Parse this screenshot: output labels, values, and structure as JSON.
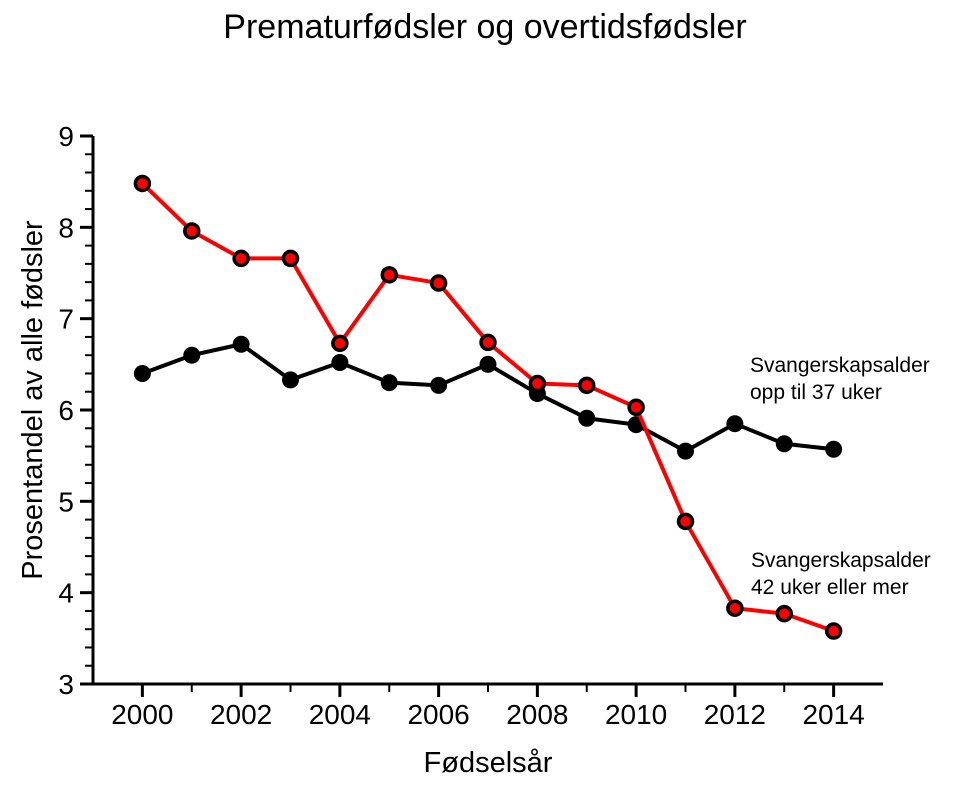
{
  "chart_data": {
    "type": "line",
    "title": "Prematurfødsler og overtidsfødsler",
    "xlabel": "Fødselsår",
    "ylabel": "Prosentandel av alle fødsler",
    "xlim": [
      1999,
      2015
    ],
    "ylim": [
      3,
      9
    ],
    "grid": false,
    "legend_position": "none (direct line labels)",
    "x": [
      2000,
      2001,
      2002,
      2003,
      2004,
      2005,
      2006,
      2007,
      2008,
      2009,
      2010,
      2011,
      2012,
      2013,
      2014
    ],
    "x_major_ticks": [
      2000,
      2002,
      2004,
      2006,
      2008,
      2010,
      2012,
      2014
    ],
    "x_minor_ticks": [
      2001,
      2003,
      2005,
      2007,
      2009,
      2011,
      2013
    ],
    "y_major_ticks": [
      3,
      4,
      5,
      6,
      7,
      8,
      9
    ],
    "y_minor_step": 0.2,
    "series": [
      {
        "name": "Svangerskapsalder opp til 37 uker",
        "color": "#000000",
        "marker": "filled-circle",
        "values": [
          6.4,
          6.6,
          6.72,
          6.33,
          6.52,
          6.3,
          6.27,
          6.5,
          6.18,
          5.91,
          5.84,
          5.55,
          5.85,
          5.63,
          5.57
        ]
      },
      {
        "name": "Svangerskapsalder 42 uker eller mer",
        "color": "#ff0000",
        "marker": "red-circle-black-ring",
        "marker_ring": "#000000",
        "values": [
          8.48,
          7.96,
          7.66,
          7.66,
          6.73,
          7.48,
          7.39,
          6.74,
          6.29,
          6.27,
          6.03,
          4.78,
          3.83,
          3.77,
          3.58
        ]
      }
    ],
    "annotations": [
      {
        "line1": "Svangerskapsalder",
        "line2": "opp til 37 uker"
      },
      {
        "line1": "Svangerskapsalder",
        "line2": "42 uker eller mer"
      }
    ]
  }
}
